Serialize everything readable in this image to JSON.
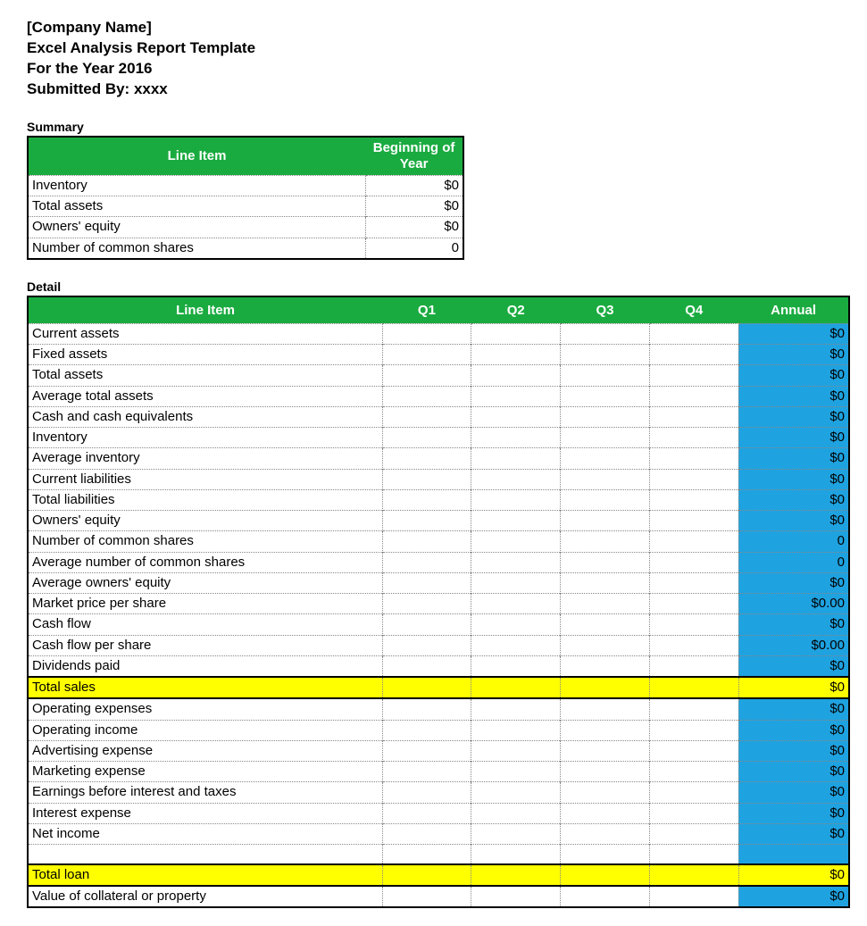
{
  "header": {
    "company": "[Company Name]",
    "title": "Excel Analysis Report Template",
    "year_line": "For the Year 2016",
    "submitted_by": "Submitted By:  xxxx"
  },
  "summary": {
    "title": "Summary",
    "columns": [
      "Line Item",
      "Beginning of Year"
    ],
    "header_bg": "#1aab40",
    "header_fg": "#ffffff",
    "rows": [
      {
        "label": "Inventory",
        "value": "$0"
      },
      {
        "label": "Total assets",
        "value": "$0"
      },
      {
        "label": "Owners' equity",
        "value": "$0"
      },
      {
        "label": "Number of common shares",
        "value": "0"
      }
    ]
  },
  "detail": {
    "title": "Detail",
    "columns": [
      "Line Item",
      "Q1",
      "Q2",
      "Q3",
      "Q4",
      "Annual"
    ],
    "header_bg": "#1aab40",
    "header_fg": "#ffffff",
    "annual_bg": "#1fa2e0",
    "highlight_bg": "#ffff00",
    "rows": [
      {
        "label": "Current assets",
        "q1": "",
        "q2": "",
        "q3": "",
        "q4": "",
        "annual": "$0",
        "type": "normal"
      },
      {
        "label": "Fixed assets",
        "q1": "",
        "q2": "",
        "q3": "",
        "q4": "",
        "annual": "$0",
        "type": "normal"
      },
      {
        "label": "Total assets",
        "q1": "",
        "q2": "",
        "q3": "",
        "q4": "",
        "annual": "$0",
        "type": "normal"
      },
      {
        "label": "Average total assets",
        "q1": "",
        "q2": "",
        "q3": "",
        "q4": "",
        "annual": "$0",
        "type": "normal"
      },
      {
        "label": "Cash and cash equivalents",
        "q1": "",
        "q2": "",
        "q3": "",
        "q4": "",
        "annual": "$0",
        "type": "normal"
      },
      {
        "label": "Inventory",
        "q1": "",
        "q2": "",
        "q3": "",
        "q4": "",
        "annual": "$0",
        "type": "normal"
      },
      {
        "label": "Average inventory",
        "q1": "",
        "q2": "",
        "q3": "",
        "q4": "",
        "annual": "$0",
        "type": "normal"
      },
      {
        "label": "Current liabilities",
        "q1": "",
        "q2": "",
        "q3": "",
        "q4": "",
        "annual": "$0",
        "type": "normal"
      },
      {
        "label": "Total liabilities",
        "q1": "",
        "q2": "",
        "q3": "",
        "q4": "",
        "annual": "$0",
        "type": "normal"
      },
      {
        "label": "Owners' equity",
        "q1": "",
        "q2": "",
        "q3": "",
        "q4": "",
        "annual": "$0",
        "type": "normal"
      },
      {
        "label": "Number of common shares",
        "q1": "",
        "q2": "",
        "q3": "",
        "q4": "",
        "annual": "0",
        "type": "normal"
      },
      {
        "label": "Average number of common shares",
        "q1": "",
        "q2": "",
        "q3": "",
        "q4": "",
        "annual": "0",
        "type": "normal"
      },
      {
        "label": "Average owners' equity",
        "q1": "",
        "q2": "",
        "q3": "",
        "q4": "",
        "annual": "$0",
        "type": "normal"
      },
      {
        "label": "Market price per share",
        "q1": "",
        "q2": "",
        "q3": "",
        "q4": "",
        "annual": "$0.00",
        "type": "normal"
      },
      {
        "label": "Cash flow",
        "q1": "",
        "q2": "",
        "q3": "",
        "q4": "",
        "annual": "$0",
        "type": "normal"
      },
      {
        "label": "Cash flow per share",
        "q1": "",
        "q2": "",
        "q3": "",
        "q4": "",
        "annual": "$0.00",
        "type": "normal"
      },
      {
        "label": "Dividends paid",
        "q1": "",
        "q2": "",
        "q3": "",
        "q4": "",
        "annual": "$0",
        "type": "normal"
      },
      {
        "label": "Total sales",
        "q1": "",
        "q2": "",
        "q3": "",
        "q4": "",
        "annual": "$0",
        "type": "highlight"
      },
      {
        "label": "Operating expenses",
        "q1": "",
        "q2": "",
        "q3": "",
        "q4": "",
        "annual": "$0",
        "type": "normal"
      },
      {
        "label": "Operating income",
        "q1": "",
        "q2": "",
        "q3": "",
        "q4": "",
        "annual": "$0",
        "type": "normal"
      },
      {
        "label": "Advertising expense",
        "q1": "",
        "q2": "",
        "q3": "",
        "q4": "",
        "annual": "$0",
        "type": "normal"
      },
      {
        "label": "Marketing expense",
        "q1": "",
        "q2": "",
        "q3": "",
        "q4": "",
        "annual": "$0",
        "type": "normal"
      },
      {
        "label": "Earnings before interest and taxes",
        "q1": "",
        "q2": "",
        "q3": "",
        "q4": "",
        "annual": "$0",
        "type": "normal"
      },
      {
        "label": "Interest expense",
        "q1": "",
        "q2": "",
        "q3": "",
        "q4": "",
        "annual": "$0",
        "type": "normal"
      },
      {
        "label": "Net income",
        "q1": "",
        "q2": "",
        "q3": "",
        "q4": "",
        "annual": "$0",
        "type": "normal"
      },
      {
        "type": "spacer"
      },
      {
        "label": "Total loan",
        "q1": "",
        "q2": "",
        "q3": "",
        "q4": "",
        "annual": "$0",
        "type": "highlight"
      },
      {
        "label": "Value of collateral or property",
        "q1": "",
        "q2": "",
        "q3": "",
        "q4": "",
        "annual": "$0",
        "type": "normal"
      }
    ]
  }
}
